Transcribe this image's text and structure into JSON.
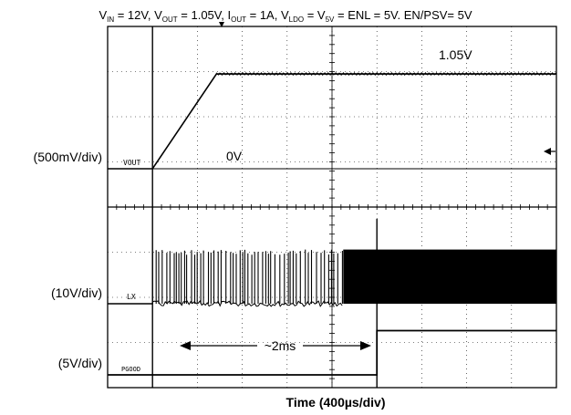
{
  "chart_data": {
    "type": "line",
    "title_parts": {
      "vin_sym": "V",
      "vin_sub": "IN",
      "vin_val": " = 12V, ",
      "vout_sym": "V",
      "vout_sub": "OUT",
      "vout_val": " = 1.05V, ",
      "iout_sym": "I",
      "iout_sub": "OUT",
      "iout_val": " = 1A, ",
      "vldo_sym": "V",
      "vldo_sub": "LDO",
      "vldo_mid": " = ",
      "v5v_sym": "V",
      "v5v_sub": "5V",
      "v5v_val": " = ENL = 5V. EN/PSV= 5V"
    },
    "xlabel": "Time (400µs/div)",
    "time_per_div_us": 400,
    "horizontal_divisions": 10,
    "vertical_divisions": 8,
    "channels": [
      {
        "name": "VOUT",
        "scale_label": "(500mV/div)",
        "trace_label": "VOUT",
        "annotations": {
          "start": "0V",
          "end": "1.05V"
        },
        "points_time_ms": [
          0.0,
          0.4,
          0.97,
          4.0
        ],
        "points_value_V": [
          0.0,
          0.0,
          1.05,
          1.05
        ]
      },
      {
        "name": "LX",
        "scale_label": "(10V/div)",
        "trace_label": "LX",
        "switching_start_ms": 0.4,
        "full_switching_start_ms": 2.1,
        "switch_high_V": 12,
        "switch_low_V": 0
      },
      {
        "name": "PGOOD",
        "scale_label": "(5V/div)",
        "trace_label": "PGOOD",
        "points_time_ms": [
          0.0,
          2.4,
          2.4,
          4.0
        ],
        "points_value_V": [
          0,
          0,
          5,
          5
        ]
      }
    ],
    "measurement": {
      "label": "~2ms",
      "from_ms": 0.4,
      "to_ms": 2.4
    }
  }
}
